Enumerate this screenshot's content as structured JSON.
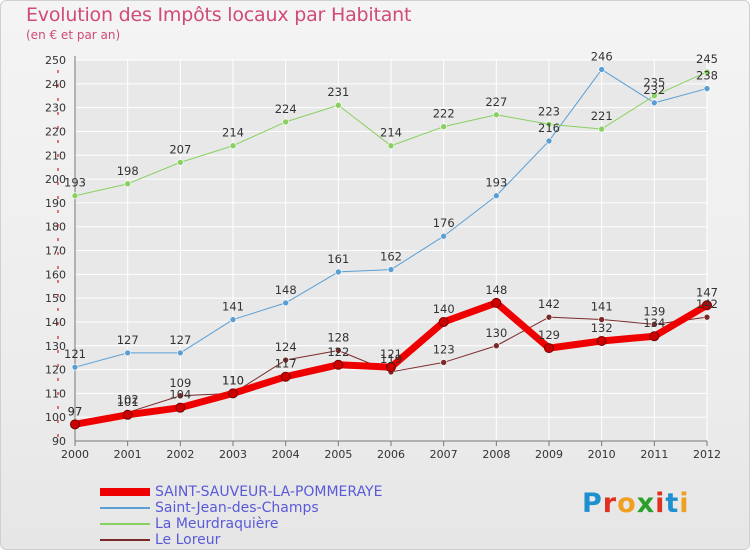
{
  "title": "Evolution des Impôts locaux par Habitant",
  "subtitle": "(en € et par an)",
  "logo": {
    "text": "Proxiti",
    "letter_colors": [
      "#1e90d0",
      "#e03020",
      "#f0a020",
      "#2aa02a",
      "#e03020",
      "#1e90d0",
      "#f0a020"
    ]
  },
  "colors": {
    "grid": "#ffffff",
    "axis": "#777777",
    "tick_text": "#333333",
    "label_text": "#333333",
    "red_ticks": "#d02020"
  },
  "chart_data": {
    "type": "line",
    "title": "Evolution des Impôts locaux par Habitant",
    "ylabel": "(en € et par an)",
    "xlabel": "",
    "ylim": [
      90,
      250
    ],
    "yticks": [
      90,
      100,
      110,
      120,
      130,
      140,
      150,
      160,
      170,
      180,
      190,
      200,
      210,
      220,
      230,
      240,
      250
    ],
    "x": [
      "2000",
      "2001",
      "2002",
      "2003",
      "2004",
      "2005",
      "2006",
      "2007",
      "2008",
      "2009",
      "2010",
      "2011",
      "2012"
    ],
    "grid": true,
    "legend_position": "bottom-left",
    "series": [
      {
        "name": "SAINT-SAUVEUR-LA-POMMERAYE",
        "color": "#ee0000",
        "width": 7,
        "emphasis": true,
        "values": [
          97,
          101,
          104,
          110,
          117,
          122,
          121,
          140,
          148,
          129,
          132,
          134,
          147
        ]
      },
      {
        "name": "Saint-Jean-des-Champs",
        "color": "#5a9fd4",
        "width": 1,
        "values": [
          121,
          127,
          127,
          141,
          148,
          161,
          162,
          176,
          193,
          216,
          246,
          232,
          238
        ]
      },
      {
        "name": "La Meurdraquière",
        "color": "#88d060",
        "width": 1,
        "values": [
          193,
          198,
          207,
          214,
          224,
          231,
          214,
          222,
          227,
          223,
          221,
          235,
          245
        ]
      },
      {
        "name": "Le Loreur",
        "color": "#7a2a2a",
        "width": 1,
        "values": [
          97,
          102,
          109,
          110,
          124,
          128,
          119,
          123,
          130,
          142,
          141,
          139,
          142
        ]
      }
    ],
    "data_labels": [
      {
        "series": 0,
        "values": [
          "97",
          "101",
          "104",
          "110",
          "117",
          "122",
          "121",
          "140",
          "148",
          "129",
          "132",
          "134",
          "147"
        ]
      },
      {
        "series": 1,
        "values": [
          "121",
          "127",
          "127",
          "141",
          "148",
          "161",
          "162",
          "176",
          "193",
          "216",
          "246",
          "232",
          "238"
        ]
      },
      {
        "series": 2,
        "values": [
          "193",
          "198",
          "207",
          "214",
          "224",
          "231",
          "214",
          "222",
          "227",
          "223",
          "221",
          "235",
          "245"
        ]
      },
      {
        "series": 3,
        "values": [
          "97",
          "102",
          "109",
          "110",
          "124",
          "128",
          "119",
          "123",
          "130",
          "142",
          "141",
          "139",
          "142"
        ]
      }
    ]
  }
}
